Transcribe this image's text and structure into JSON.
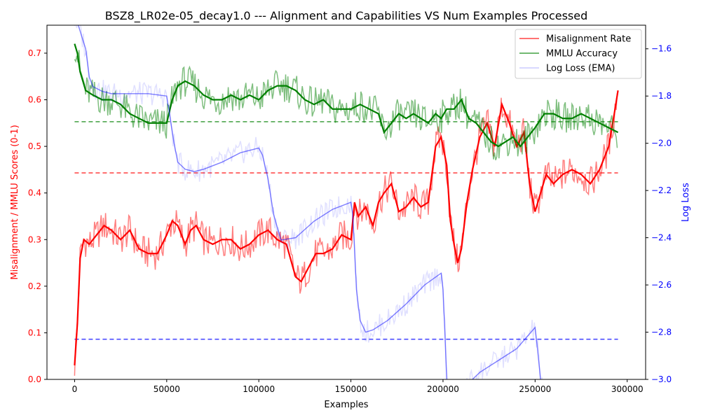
{
  "chart_data": {
    "type": "line",
    "title": "BSZ8_LR02e-05_decay1.0 --- Alignment and Capabilities VS Num Examples Processed",
    "xlabel": "Examples",
    "ylabel_left": "Misalignment / MMLU Scores (0-1)",
    "ylabel_right": "Log Loss",
    "xlim": [
      -15000,
      310000
    ],
    "ylim_left": [
      0.0,
      0.76
    ],
    "ylim_right": [
      -3.0,
      -1.5
    ],
    "x_ticks": [
      0,
      50000,
      100000,
      150000,
      200000,
      250000,
      300000
    ],
    "y_left_ticks": [
      0.0,
      0.1,
      0.2,
      0.3,
      0.4,
      0.5,
      0.6,
      0.7
    ],
    "y_right_ticks": [
      -3.0,
      -2.8,
      -2.6,
      -2.4,
      -2.2,
      -2.0,
      -1.8,
      -1.6
    ],
    "legend": {
      "position": "top-right",
      "entries": [
        "Misalignment Rate",
        "MMLU Accuracy",
        "Log Loss (EMA)"
      ]
    },
    "colors": {
      "misalignment": "#ff0000",
      "mmlu": "#008000",
      "logloss": "#0000ff",
      "left_axis": "#ff0000",
      "right_axis": "#0000ff"
    },
    "reference_lines": [
      {
        "series": "Misalignment Rate",
        "axis": "left",
        "y": 0.443,
        "color": "#ff0000"
      },
      {
        "series": "MMLU Accuracy",
        "axis": "left",
        "y": 0.553,
        "color": "#008000"
      },
      {
        "series": "Log Loss (EMA)",
        "axis": "right",
        "y": -2.83,
        "color": "#0000ff"
      }
    ],
    "series": [
      {
        "name": "Misalignment Rate",
        "axis": "left",
        "x": [
          0,
          1500,
          3000,
          5000,
          8000,
          12000,
          16000,
          20000,
          25000,
          30000,
          35000,
          40000,
          45000,
          50000,
          53000,
          56000,
          60000,
          63000,
          66000,
          70000,
          75000,
          80000,
          85000,
          90000,
          95000,
          100000,
          105000,
          110000,
          115000,
          120000,
          123000,
          127000,
          131000,
          135000,
          140000,
          145000,
          150000,
          152000,
          154000,
          158000,
          162000,
          165000,
          168000,
          172000,
          176000,
          180000,
          184000,
          188000,
          192000,
          196000,
          199000,
          202000,
          204000,
          206000,
          208000,
          210000,
          213000,
          216000,
          220000,
          224000,
          228000,
          232000,
          236000,
          240000,
          244000,
          247000,
          250000,
          253000,
          256000,
          260000,
          265000,
          270000,
          275000,
          280000,
          285000,
          290000,
          293000,
          295000
        ],
        "values": [
          0.03,
          0.12,
          0.26,
          0.3,
          0.29,
          0.31,
          0.33,
          0.32,
          0.3,
          0.32,
          0.28,
          0.27,
          0.27,
          0.31,
          0.34,
          0.33,
          0.29,
          0.32,
          0.33,
          0.3,
          0.29,
          0.3,
          0.3,
          0.28,
          0.29,
          0.31,
          0.32,
          0.3,
          0.29,
          0.22,
          0.21,
          0.24,
          0.27,
          0.27,
          0.28,
          0.31,
          0.3,
          0.38,
          0.35,
          0.37,
          0.33,
          0.38,
          0.4,
          0.42,
          0.36,
          0.37,
          0.39,
          0.37,
          0.38,
          0.5,
          0.52,
          0.46,
          0.34,
          0.29,
          0.25,
          0.28,
          0.38,
          0.45,
          0.52,
          0.55,
          0.5,
          0.59,
          0.55,
          0.5,
          0.53,
          0.42,
          0.36,
          0.4,
          0.44,
          0.42,
          0.44,
          0.45,
          0.44,
          0.42,
          0.45,
          0.5,
          0.57,
          0.62
        ]
      },
      {
        "name": "MMLU Accuracy",
        "axis": "left",
        "x": [
          0,
          1500,
          3000,
          6000,
          10000,
          15000,
          20000,
          25000,
          30000,
          35000,
          40000,
          45000,
          50000,
          53000,
          56000,
          60000,
          65000,
          70000,
          75000,
          80000,
          85000,
          90000,
          95000,
          100000,
          105000,
          110000,
          115000,
          120000,
          125000,
          130000,
          135000,
          140000,
          145000,
          150000,
          155000,
          160000,
          165000,
          168000,
          172000,
          176000,
          180000,
          184000,
          188000,
          192000,
          196000,
          199000,
          202000,
          206000,
          210000,
          214000,
          218000,
          222000,
          226000,
          230000,
          234000,
          238000,
          242000,
          246000,
          250000,
          255000,
          260000,
          265000,
          270000,
          275000,
          280000,
          285000,
          290000,
          295000
        ],
        "values": [
          0.72,
          0.7,
          0.66,
          0.62,
          0.61,
          0.6,
          0.6,
          0.59,
          0.57,
          0.56,
          0.55,
          0.55,
          0.55,
          0.6,
          0.63,
          0.64,
          0.63,
          0.61,
          0.6,
          0.6,
          0.61,
          0.6,
          0.61,
          0.6,
          0.62,
          0.63,
          0.63,
          0.62,
          0.6,
          0.59,
          0.6,
          0.58,
          0.58,
          0.58,
          0.59,
          0.58,
          0.57,
          0.53,
          0.55,
          0.57,
          0.56,
          0.57,
          0.56,
          0.55,
          0.57,
          0.56,
          0.58,
          0.58,
          0.6,
          0.56,
          0.55,
          0.53,
          0.51,
          0.5,
          0.51,
          0.52,
          0.5,
          0.52,
          0.54,
          0.57,
          0.57,
          0.56,
          0.56,
          0.57,
          0.56,
          0.55,
          0.54,
          0.53
        ]
      },
      {
        "name": "Log Loss (EMA)",
        "axis": "right",
        "x": [
          0,
          2000,
          4000,
          6000,
          8000,
          10000,
          15000,
          20000,
          30000,
          40000,
          50000,
          52000,
          54000,
          56000,
          60000,
          65000,
          70000,
          80000,
          90000,
          100000,
          102000,
          105000,
          108000,
          112000,
          120000,
          130000,
          140000,
          150000,
          151000,
          152000,
          153000,
          155000,
          158000,
          162000,
          170000,
          180000,
          190000,
          199000,
          200000,
          201000,
          202000,
          204000,
          206000,
          208000,
          212000,
          216000,
          220000,
          230000,
          240000,
          250000,
          251000,
          253000,
          256000
        ],
        "values": [
          -1.48,
          -1.5,
          -1.55,
          -1.6,
          -1.72,
          -1.76,
          -1.78,
          -1.79,
          -1.79,
          -1.79,
          -1.8,
          -1.9,
          -2.0,
          -2.08,
          -2.11,
          -2.12,
          -2.11,
          -2.08,
          -2.04,
          -2.02,
          -2.05,
          -2.15,
          -2.3,
          -2.41,
          -2.4,
          -2.33,
          -2.28,
          -2.25,
          -2.3,
          -2.45,
          -2.62,
          -2.75,
          -2.8,
          -2.79,
          -2.75,
          -2.68,
          -2.6,
          -2.55,
          -2.62,
          -2.8,
          -3.0,
          -3.07,
          -3.1,
          -3.08,
          -3.04,
          -3.0,
          -2.97,
          -2.92,
          -2.87,
          -2.78,
          -2.85,
          -3.0,
          -3.1
        ]
      }
    ]
  }
}
